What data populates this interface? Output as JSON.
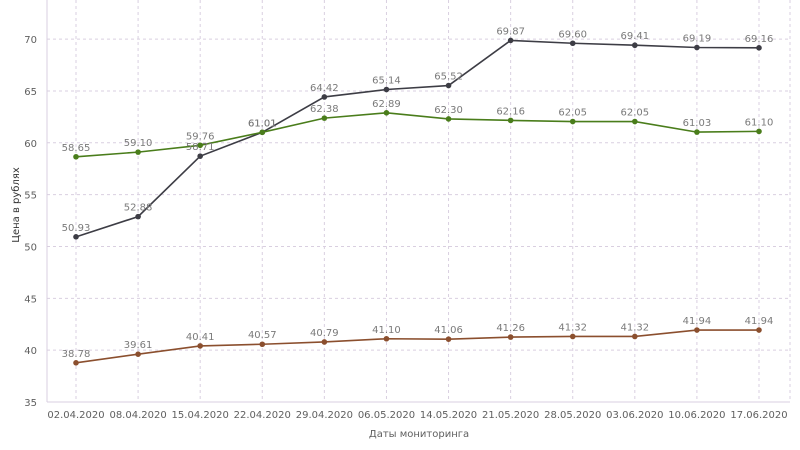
{
  "chart_data": {
    "type": "line",
    "xlabel": "Даты мониторинга",
    "ylabel": "Цена в рублях",
    "ylim": [
      35,
      73
    ],
    "yticks": [
      35,
      40,
      45,
      50,
      55,
      60,
      65,
      70
    ],
    "grid": true,
    "categories": [
      "02.04.2020",
      "08.04.2020",
      "15.04.2020",
      "22.04.2020",
      "29.04.2020",
      "06.05.2020",
      "14.05.2020",
      "21.05.2020",
      "28.05.2020",
      "03.06.2020",
      "10.06.2020",
      "17.06.2020"
    ],
    "series": [
      {
        "color": "#3d3d45",
        "values": [
          50.93,
          52.88,
          58.71,
          61.01,
          64.42,
          65.14,
          65.52,
          69.87,
          69.6,
          69.41,
          69.19,
          69.16
        ]
      },
      {
        "color": "#4a7d1b",
        "values": [
          58.65,
          59.1,
          59.76,
          61.01,
          62.38,
          62.89,
          62.3,
          62.16,
          62.05,
          62.05,
          61.03,
          61.1
        ]
      },
      {
        "color": "#8b4f2e",
        "values": [
          38.78,
          39.61,
          40.41,
          40.57,
          40.79,
          41.1,
          41.06,
          41.26,
          41.32,
          41.32,
          41.94,
          41.94
        ]
      }
    ]
  }
}
